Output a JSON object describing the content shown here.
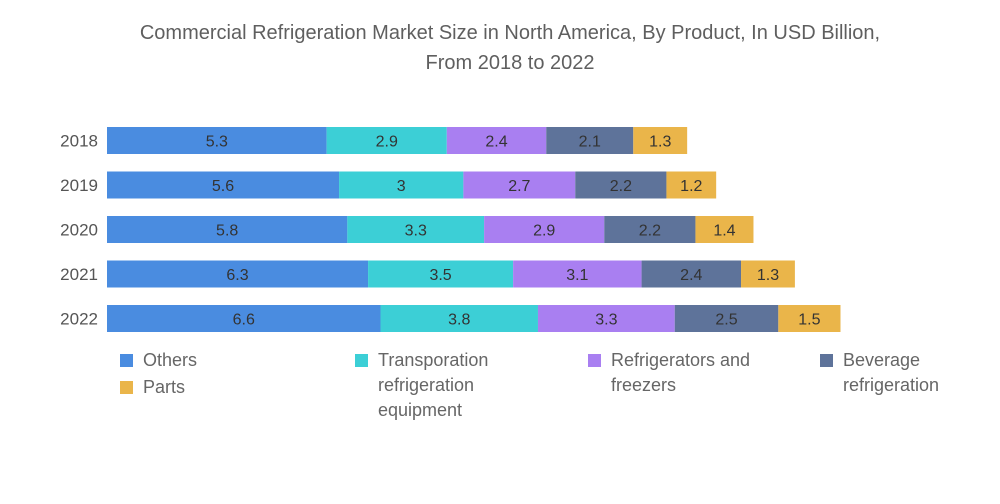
{
  "chart_data": {
    "type": "bar",
    "orientation": "horizontal",
    "stacked": true,
    "title": "Commercial Refrigeration Market Size in North America, By Product, In USD Billion, From 2018 to 2022",
    "title_lines": [
      "Commercial Refrigeration Market Size in North America, By Product, In USD Billion,",
      "From 2018 to 2022"
    ],
    "xlabel": "",
    "ylabel": "",
    "grid": false,
    "legend_position": "bottom",
    "categories": [
      "2018",
      "2019",
      "2020",
      "2021",
      "2022"
    ],
    "series": [
      {
        "name": "Others",
        "color": "#4a8ce0",
        "values": [
          5.3,
          5.6,
          5.8,
          6.3,
          6.6
        ]
      },
      {
        "name": "Transporation refrigeration equipment",
        "color": "#3ccfd6",
        "values": [
          2.9,
          3,
          3.3,
          3.5,
          3.8
        ]
      },
      {
        "name": "Refrigerators and freezers",
        "color": "#a97ff1",
        "values": [
          2.4,
          2.7,
          2.9,
          3.1,
          3.3
        ]
      },
      {
        "name": "Beverage refrigeration",
        "color": "#5e739a",
        "values": [
          2.1,
          2.2,
          2.2,
          2.4,
          2.5
        ]
      },
      {
        "name": "Parts",
        "color": "#eab54a",
        "values": [
          1.3,
          1.2,
          1.4,
          1.3,
          1.5
        ]
      }
    ],
    "legend_labels": [
      [
        "Others"
      ],
      [
        "Transporation",
        "refrigeration",
        "equipment"
      ],
      [
        "Refrigerators and",
        "freezers"
      ],
      [
        "Beverage",
        "refrigeration"
      ],
      [
        "Parts"
      ]
    ]
  }
}
